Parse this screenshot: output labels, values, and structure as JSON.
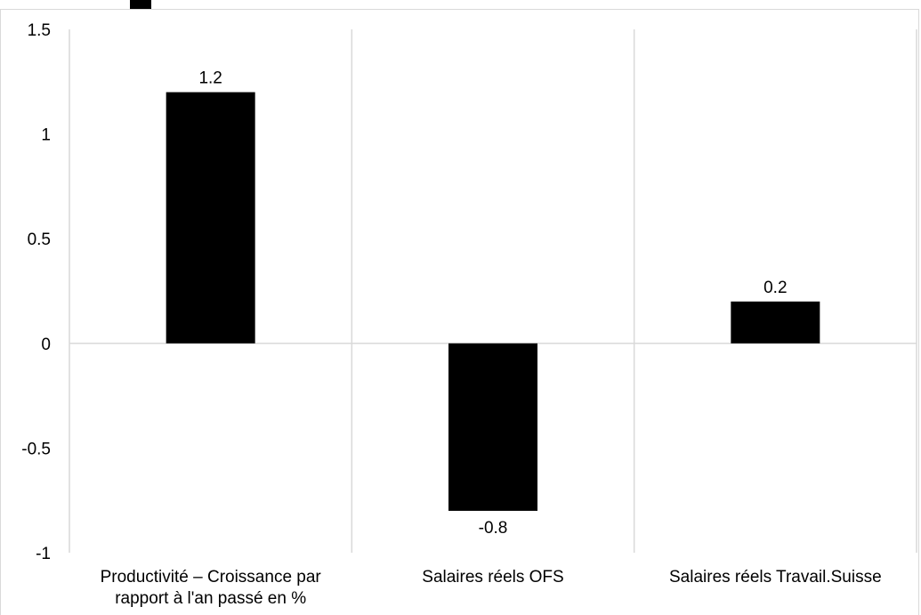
{
  "chart_data": {
    "type": "bar",
    "title": "",
    "xlabel": "",
    "ylabel": "",
    "categories": [
      [
        "Productivité – Croissance par",
        "rapport à l'an passé en %"
      ],
      [
        "Salaires réels OFS"
      ],
      [
        "Salaires réels Travail.Suisse"
      ]
    ],
    "values": [
      1.2,
      -0.8,
      0.2
    ],
    "data_labels": [
      "1.2",
      "-0.8",
      "0.2"
    ],
    "ylim": [
      -1,
      1.5
    ],
    "yticks": [
      1.5,
      1,
      0.5,
      0,
      -0.5,
      -1
    ],
    "ytick_labels": [
      "1.5",
      "1",
      "0.5",
      "0",
      "-0.5",
      "-1"
    ],
    "grid": "vertical category separators",
    "bar_color": "#000000",
    "grid_color": "#d9d9d9",
    "zero_line_color": "#d9d9d9"
  }
}
